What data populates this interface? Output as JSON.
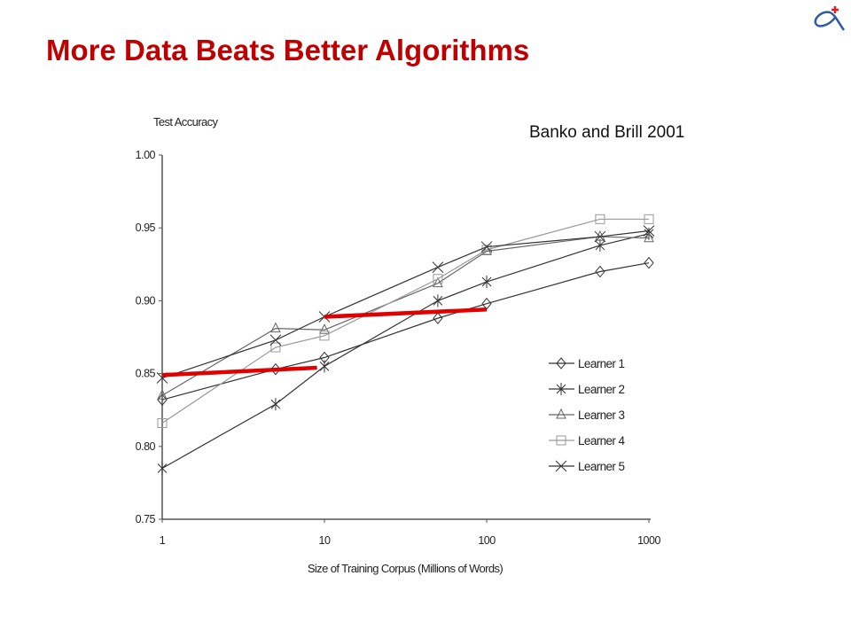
{
  "slide": {
    "title": "More Data Beats Better Algorithms",
    "logo": "fish-logo"
  },
  "chart_data": {
    "type": "line",
    "title": "",
    "annotation": "Banko and Brill 2001",
    "xlabel": "Size of Training Corpus (Millions of Words)",
    "ylabel": "Test Accuracy",
    "xscale": "log",
    "xlim": [
      1,
      1000
    ],
    "ylim": [
      0.75,
      1.0
    ],
    "xticks": [
      "1",
      "10",
      "100",
      "1000"
    ],
    "xtick_values": [
      1,
      10,
      100,
      1000
    ],
    "yticks": [
      "0.75",
      "0.80",
      "0.85",
      "0.90",
      "0.95",
      "1.00"
    ],
    "ytick_values": [
      0.75,
      0.8,
      0.85,
      0.9,
      0.95,
      1.0
    ],
    "x": [
      1,
      5,
      10,
      50,
      100,
      500,
      1000
    ],
    "legend_position": "right",
    "series": [
      {
        "name": "Learner 1",
        "marker": "diamond",
        "color": "#333333",
        "values": [
          0.832,
          0.853,
          0.861,
          0.888,
          0.898,
          0.92,
          0.926
        ]
      },
      {
        "name": "Learner 2",
        "marker": "asterisk",
        "color": "#333333",
        "values": [
          0.785,
          0.829,
          0.855,
          0.9,
          0.913,
          0.938,
          0.946
        ]
      },
      {
        "name": "Learner 3",
        "marker": "triangle",
        "color": "#666666",
        "values": [
          0.835,
          0.881,
          0.88,
          0.912,
          0.934,
          0.944,
          0.943
        ]
      },
      {
        "name": "Learner 4",
        "marker": "square",
        "color": "#999999",
        "values": [
          0.816,
          0.868,
          0.876,
          0.915,
          0.935,
          0.956,
          0.956
        ]
      },
      {
        "name": "Learner 5",
        "marker": "x",
        "color": "#333333",
        "values": [
          0.847,
          0.873,
          0.889,
          0.923,
          0.937,
          0.944,
          0.948
        ]
      }
    ],
    "highlights": [
      {
        "color": "#e00000",
        "x": [
          1,
          9
        ],
        "y": [
          0.849,
          0.854
        ]
      },
      {
        "color": "#e00000",
        "x": [
          10,
          100
        ],
        "y": [
          0.889,
          0.894
        ]
      }
    ]
  }
}
